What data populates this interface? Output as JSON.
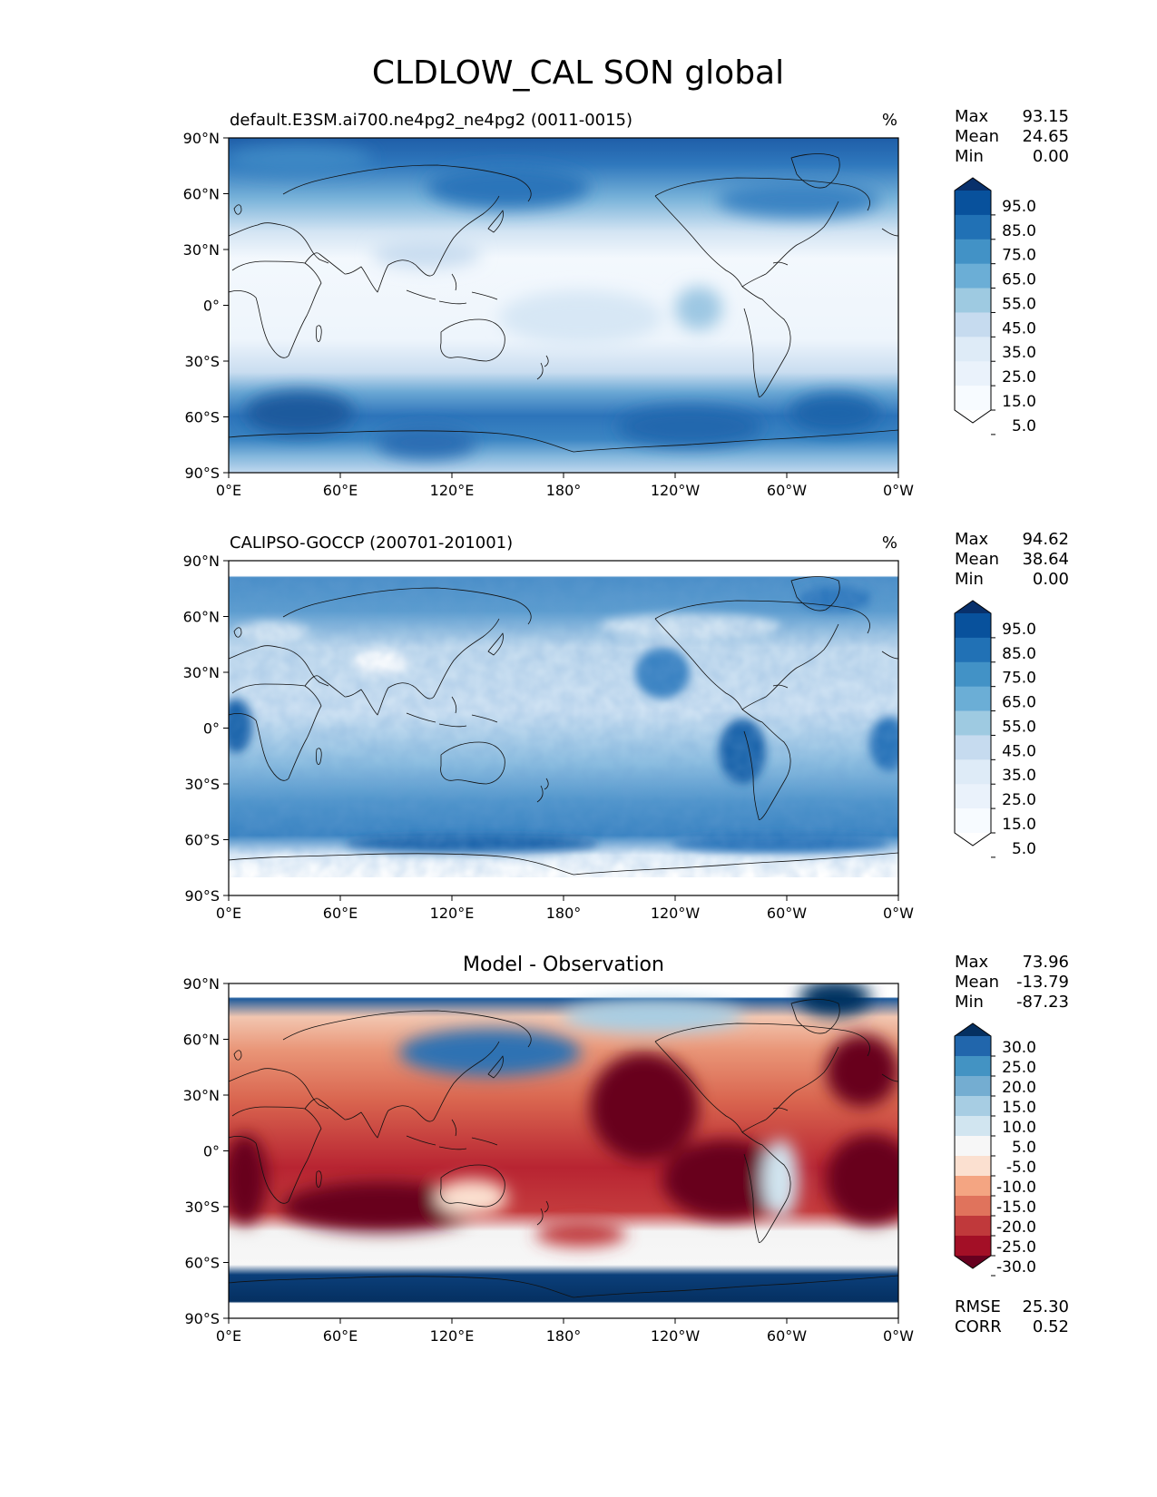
{
  "figure": {
    "title": "CLDLOW_CAL SON global"
  },
  "axes": {
    "lat_ticks": [
      "90°N",
      "60°N",
      "30°N",
      "0°",
      "30°S",
      "60°S",
      "90°S"
    ],
    "lon_ticks": [
      "0°E",
      "60°E",
      "120°E",
      "180°",
      "120°W",
      "60°W",
      "0°W"
    ]
  },
  "panels": [
    {
      "id": "model",
      "title_left": "default.E3SM.ai700.ne4pg2_ne4pg2 (0011-0015)",
      "title_center": "",
      "units": "%",
      "stats_labels": [
        "Max",
        "Mean",
        "Min"
      ],
      "stats_values": [
        "93.15",
        "24.65",
        "0.00"
      ],
      "colorbar_labels": [
        "95.0",
        "85.0",
        "75.0",
        "65.0",
        "55.0",
        "45.0",
        "35.0",
        "25.0",
        "15.0",
        "5.0"
      ],
      "colorbar_colors": [
        "#08306b",
        "#08519c",
        "#2171b5",
        "#4292c6",
        "#6baed6",
        "#9ecae1",
        "#c6dbef",
        "#deebf7",
        "#eaf2fb",
        "#f7fbff",
        "#ffffff"
      ],
      "extra_labels": [],
      "extra_values": []
    },
    {
      "id": "obs",
      "title_left": "CALIPSO-GOCCP (200701-201001)",
      "title_center": "",
      "units": "%",
      "stats_labels": [
        "Max",
        "Mean",
        "Min"
      ],
      "stats_values": [
        "94.62",
        "38.64",
        "0.00"
      ],
      "colorbar_labels": [
        "95.0",
        "85.0",
        "75.0",
        "65.0",
        "55.0",
        "45.0",
        "35.0",
        "25.0",
        "15.0",
        "5.0"
      ],
      "colorbar_colors": [
        "#08306b",
        "#08519c",
        "#2171b5",
        "#4292c6",
        "#6baed6",
        "#9ecae1",
        "#c6dbef",
        "#deebf7",
        "#eaf2fb",
        "#f7fbff",
        "#ffffff"
      ],
      "extra_labels": [],
      "extra_values": []
    },
    {
      "id": "diff",
      "title_left": "",
      "title_center": "Model - Observation",
      "units": "",
      "stats_labels": [
        "Max",
        "Mean",
        "Min"
      ],
      "stats_values": [
        "73.96",
        "-13.79",
        "-87.23"
      ],
      "colorbar_labels": [
        "30.0",
        "25.0",
        "20.0",
        "15.0",
        "10.0",
        "5.0",
        "-5.0",
        "-10.0",
        "-15.0",
        "-20.0",
        "-25.0",
        "-30.0"
      ],
      "colorbar_colors": [
        "#053061",
        "#2166ac",
        "#4393c3",
        "#74add1",
        "#a7cde3",
        "#d1e5f0",
        "#f7f7f7",
        "#fbe0d0",
        "#f4a582",
        "#e0735c",
        "#c0393b",
        "#a30f26",
        "#67001f"
      ],
      "extra_labels": [
        "RMSE",
        "CORR"
      ],
      "extra_values": [
        "25.30",
        "0.52"
      ]
    }
  ]
}
